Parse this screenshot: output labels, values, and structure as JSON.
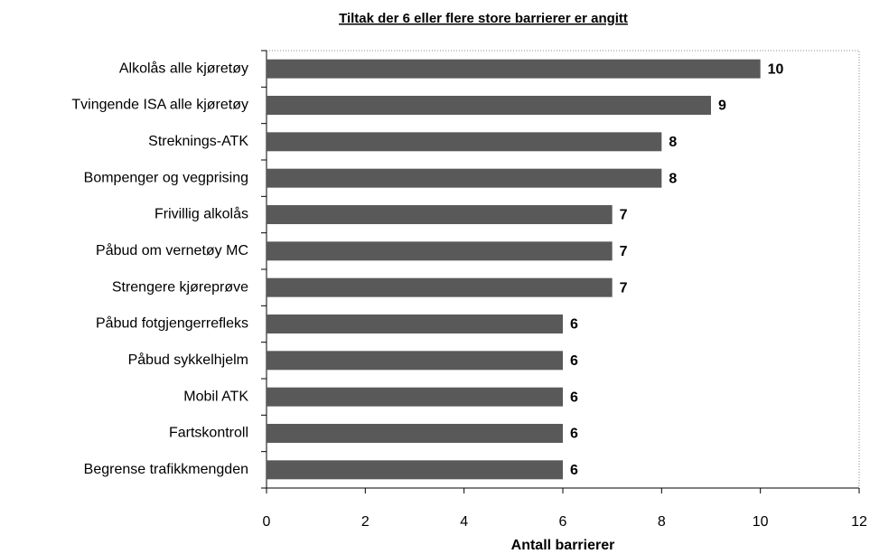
{
  "chart_data": {
    "type": "bar",
    "orientation": "horizontal",
    "title": "Tiltak der 6 eller flere store barrierer er angitt",
    "x_label": "Antall barrierer",
    "categories": [
      "Alkolås alle kjøretøy",
      "Tvingende ISA alle kjøretøy",
      "Streknings-ATK",
      "Bompenger og vegprising",
      "Frivillig alkolås",
      "Påbud om vernetøy MC",
      "Strengere kjøreprøve",
      "Påbud fotgjengerrefleks",
      "Påbud sykkelhjelm",
      "Mobil ATK",
      "Fartskontroll",
      "Begrense trafikkmengden"
    ],
    "values": [
      10,
      9,
      8,
      8,
      7,
      7,
      7,
      6,
      6,
      6,
      6,
      6
    ],
    "color": "#595959",
    "xlim": [
      0,
      12
    ],
    "xticks": [
      0,
      2,
      4,
      6,
      8,
      10,
      12
    ],
    "grid": false
  }
}
